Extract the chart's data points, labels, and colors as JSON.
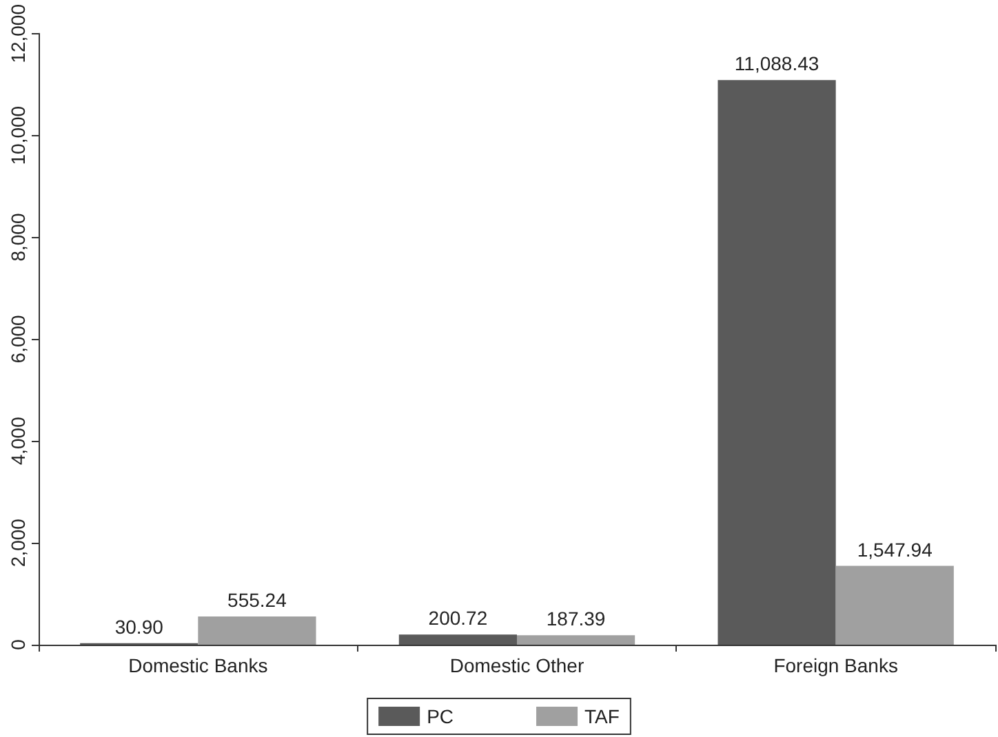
{
  "chart_data": {
    "type": "bar",
    "categories": [
      "Domestic Banks",
      "Domestic Other",
      "Foreign Banks"
    ],
    "series": [
      {
        "name": "PC",
        "color": "#5a5a5a",
        "values": [
          30.9,
          200.72,
          11088.43
        ],
        "value_labels": [
          "30.90",
          "200.72",
          "11,088.43"
        ]
      },
      {
        "name": "TAF",
        "color": "#a0a0a0",
        "values": [
          555.24,
          187.39,
          1547.94
        ],
        "value_labels": [
          "555.24",
          "187.39",
          "1,547.94"
        ]
      }
    ],
    "ylim": [
      0,
      12000
    ],
    "yticks": [
      {
        "value": 0,
        "label": "0"
      },
      {
        "value": 2000,
        "label": "2,000"
      },
      {
        "value": 4000,
        "label": "4,000"
      },
      {
        "value": 6000,
        "label": "6,000"
      },
      {
        "value": 8000,
        "label": "8,000"
      },
      {
        "value": 10000,
        "label": "10,000"
      },
      {
        "value": 12000,
        "label": "12,000"
      }
    ],
    "grid": false,
    "legend": "bottom"
  }
}
